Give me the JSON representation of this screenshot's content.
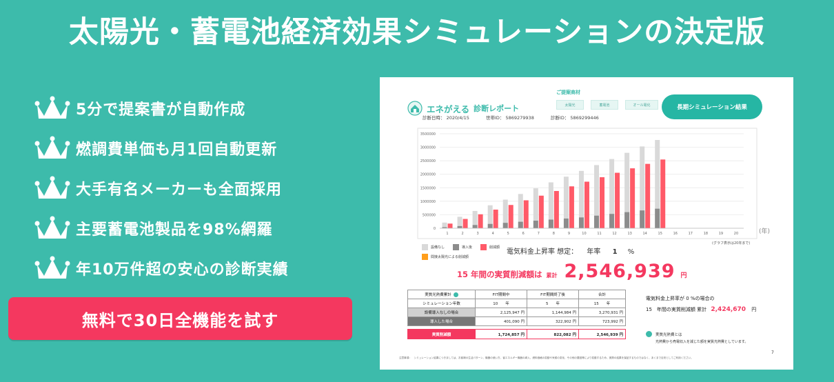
{
  "headline": "太陽光・蓄電池経済効果シミュレーションの決定版",
  "features": [
    "5分で提案書が自動作成",
    "燃調費単価も月1回自動更新",
    "大手有名メーカーも全面採用",
    "主要蓄電池製品を98%網羅",
    "年10万件超の安心の診断実績"
  ],
  "cta_label": "無料で30日全機能を試す",
  "report": {
    "brand": "エネがえる",
    "brand_sub": "診断レポート",
    "meta": {
      "date": "診断日時： 2020/4/15",
      "household_id": "世帯ID： 5869279938",
      "diagnosis_id": "診断ID： 5869299446"
    },
    "proposal_title": "ご提案商材",
    "chips": [
      "太陽光",
      "蓄電池",
      "オール電化"
    ],
    "long_sim_button": "長期シミュレーション結果",
    "legend": [
      "設備なし",
      "導入後",
      "削減額"
    ],
    "legend_extra": "間接太陽光による削減額",
    "rise_assumption": {
      "label": "電気料金上昇率 想定：",
      "rate_prefix": "年率",
      "rate": "1",
      "unit": "%"
    },
    "years_note": "(グラフ表示は20年まで)",
    "year_unit": "(年)",
    "savings": {
      "label": "15 年間の実質削減額は",
      "small": "累計",
      "amount": "2,546,939",
      "unit": "円"
    },
    "table": {
      "header": [
        "実質光熱費累計",
        "FIT期間中",
        "FIT期間終了後",
        "合計"
      ],
      "years_row": {
        "label": "シミュレーション年数",
        "v": [
          "10　　年",
          "5　　年",
          "15　　年"
        ]
      },
      "no_equipment_row": {
        "label": "設備導入なしの場合",
        "v": [
          "2,125,947 円",
          "1,144,984 円",
          "3,270,931 円"
        ]
      },
      "installed_row": {
        "label": "導入した場合",
        "v": [
          "401,090 円",
          "322,902 円",
          "723,992 円"
        ]
      },
      "reduction_row": {
        "label": "実質削減額",
        "v": [
          "1,724,857 円",
          "822,082 円",
          "2,546,939 円"
        ]
      }
    },
    "zero_rise": {
      "line1": "電気料金上昇率が 0 %の場合の",
      "line2_label": "15　年間の実質削減額 累計",
      "amount": "2,424,670",
      "unit": "円"
    },
    "explain_title": "実質光熱費とは",
    "explain_body": "光熱費から売電収入を減じた額を実質光熱費としています。",
    "page_number": "7",
    "footnote": "注意事項：　シミュレーション結果につきましては、お客様の生活パターン、機器の使い方、省エネルギー機器の導入、燃料価格の変動や気候の変化、その他の要因等により変動するため、実際の結果を保証するものではなく、あくまで目安としてご利用ください。"
  },
  "colors": {
    "background": "#3dbbab",
    "accent_pink": "#f4385f",
    "bar_none": "#d9d9d9",
    "bar_after": "#8c8c8c",
    "bar_reduction": "#ff5a68",
    "highlight": "#ff9e1b"
  },
  "chart_data": {
    "type": "bar",
    "categories": [
      "1",
      "2",
      "3",
      "4",
      "5",
      "6",
      "7",
      "8",
      "9",
      "10",
      "11",
      "12",
      "13",
      "14",
      "15",
      "16",
      "17",
      "18",
      "19",
      "20"
    ],
    "series": [
      {
        "name": "設備なし",
        "values": [
          210000,
          425000,
          640000,
          850000,
          1060000,
          1270000,
          1480000,
          1700000,
          1910000,
          2125000,
          2340000,
          2565000,
          2795000,
          3030000,
          3270000,
          null,
          null,
          null,
          null,
          null
        ]
      },
      {
        "name": "導入後",
        "values": [
          40000,
          80000,
          120000,
          160000,
          200000,
          240000,
          280000,
          320000,
          360000,
          401000,
          466000,
          531000,
          596000,
          660000,
          724000,
          null,
          null,
          null,
          null,
          null
        ]
      },
      {
        "name": "削減額",
        "values": [
          172000,
          345000,
          517000,
          690000,
          862000,
          1035000,
          1207000,
          1380000,
          1552000,
          1725000,
          1890000,
          2055000,
          2220000,
          2385000,
          2547000,
          null,
          null,
          null,
          null,
          null
        ]
      }
    ],
    "ylim": [
      0,
      3500000
    ],
    "yticks": [
      "0",
      "500000",
      "1000000",
      "1500000",
      "2000000",
      "2500000",
      "3000000",
      "3500000"
    ],
    "grid": true
  }
}
